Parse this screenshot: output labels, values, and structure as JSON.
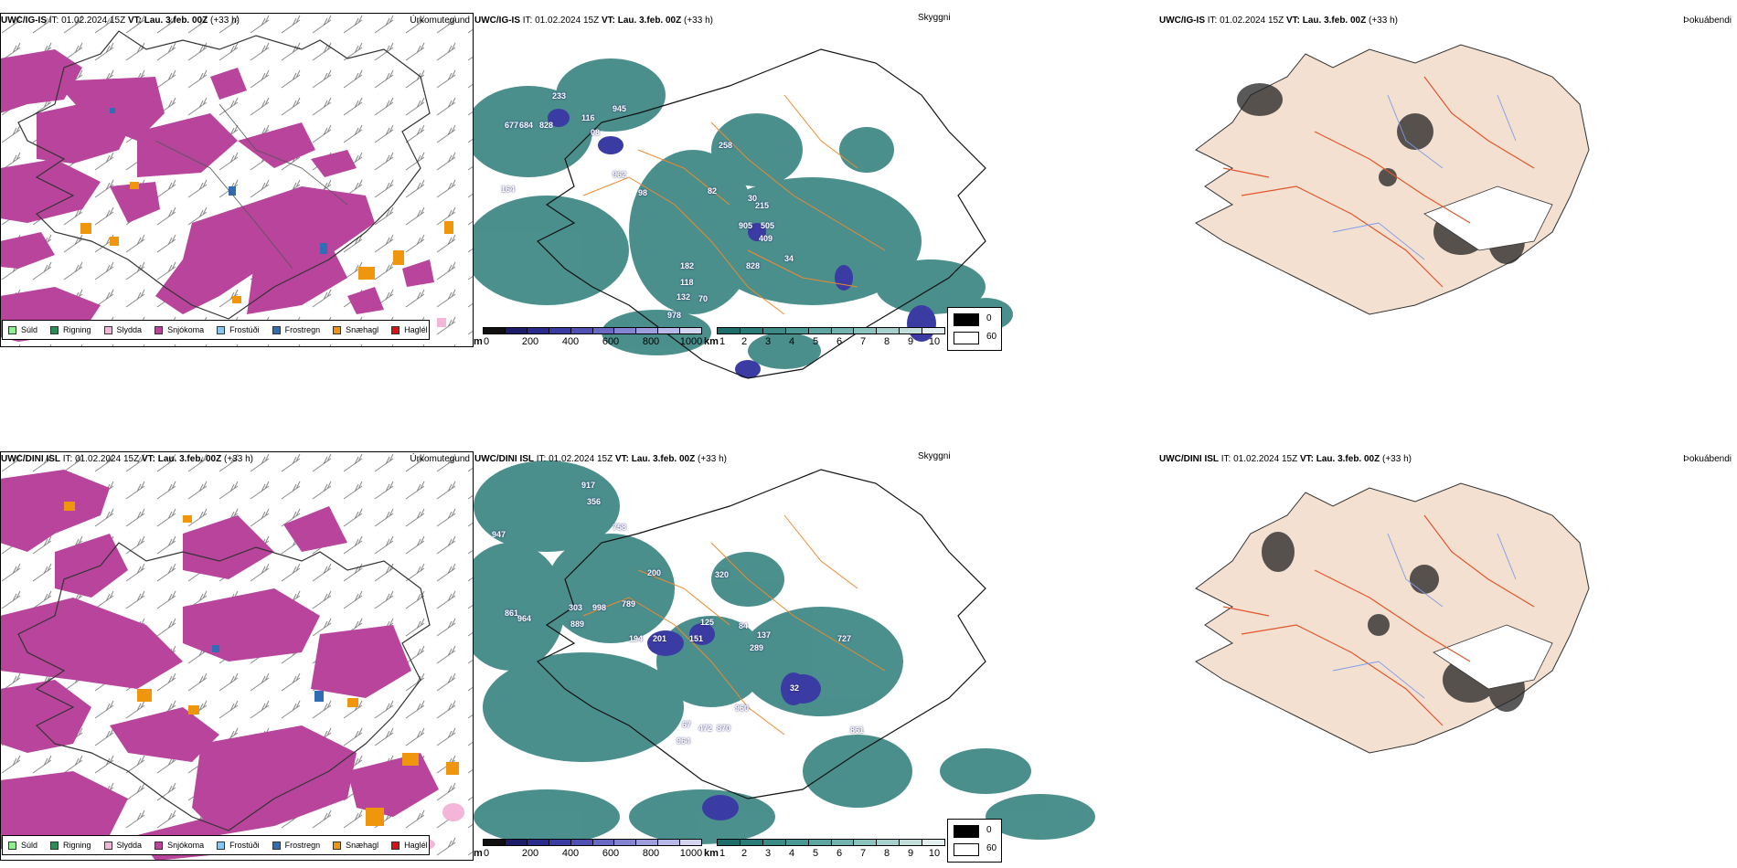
{
  "rows": [
    {
      "model": "UWC/IG-IS",
      "it_label": "IT:",
      "it_value": "01.02.2024 15Z",
      "vt_label": "VT:",
      "vt_value": "Lau. 3.feb. 00Z",
      "lead": "(+33 h)",
      "cloud_labels": [
        "233",
        "677",
        "684",
        "828",
        "116",
        "08",
        "945",
        "258",
        "962",
        "164",
        "98",
        "82",
        "30",
        "215",
        "905",
        "505",
        "409",
        "34",
        "182",
        "828",
        "118",
        "132",
        "70",
        "978"
      ]
    },
    {
      "model": "UWC/DINI ISL",
      "it_label": "IT:",
      "it_value": "01.02.2024 15Z",
      "vt_label": "VT:",
      "vt_value": "Lau. 3.feb. 00Z",
      "lead": "(+33 h)",
      "cloud_labels": [
        "917",
        "356",
        "758",
        "947",
        "200",
        "320",
        "861",
        "964",
        "303",
        "998",
        "789",
        "889",
        "125",
        "84",
        "137",
        "289",
        "727",
        "194",
        "201",
        "151",
        "32",
        "960",
        "67",
        "472",
        "870",
        "964",
        "861"
      ]
    }
  ],
  "panel_titles": {
    "precip": "Úrkomutegund",
    "cloud": "Skyggni",
    "fog": "Þokuábendi"
  },
  "precip_legend": [
    {
      "label": "Súld",
      "color": "#90ee90"
    },
    {
      "label": "Rigning",
      "color": "#2e8b57"
    },
    {
      "label": "Slydda",
      "color": "#f4b6d8"
    },
    {
      "label": "Snjókoma",
      "color": "#b8449c"
    },
    {
      "label": "Frostúði",
      "color": "#87c6ee"
    },
    {
      "label": "Frostregn",
      "color": "#2f6db5"
    },
    {
      "label": "Snæhagl",
      "color": "#f0960c"
    },
    {
      "label": "Haglél",
      "color": "#e01010"
    }
  ],
  "cloudbase_bar": {
    "unit": "m",
    "ticks": [
      "0",
      "200",
      "400",
      "600",
      "800",
      "1000"
    ],
    "colors": [
      "#101010",
      "#1c1c6a",
      "#2b2b8c",
      "#3b3ba4",
      "#5050b4",
      "#6a6ac4",
      "#8484d0",
      "#9e9edc",
      "#b8b8e6",
      "#d4d4f0"
    ]
  },
  "visibility_bar": {
    "unit": "km",
    "ticks": [
      "1",
      "2",
      "3",
      "4",
      "5",
      "6",
      "7",
      "8",
      "9",
      "10"
    ],
    "colors": [
      "#1d6e6a",
      "#2b7c78",
      "#3a8a86",
      "#4a9894",
      "#5ea6a2",
      "#74b4b0",
      "#8cc2be",
      "#a6d0cc",
      "#c2dedb",
      "#e2efee"
    ]
  },
  "fog_legend": [
    {
      "label": "0",
      "color": "#000000"
    },
    {
      "label": "60",
      "color": "#ffffff"
    }
  ],
  "colors": {
    "snow": "#b8449c",
    "grainy": "#f0960c",
    "freezing_rain": "#2f6db5",
    "visibility": "#2b7c78",
    "roads": "#ee8a2e",
    "land_fog": "#f3e0d0",
    "fog_roads": "#e2552a",
    "rivers": "#7f9ce8"
  }
}
